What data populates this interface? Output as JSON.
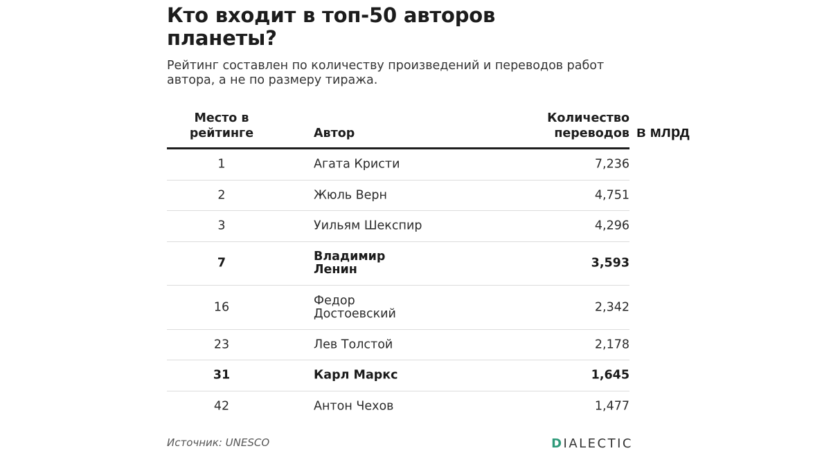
{
  "title": "Кто входит в топ-50 авторов планеты?",
  "subtitle": "Рейтинг составлен по количеству произведений и переводов работ автора, а не по размеру тиража.",
  "units_note": "в млрд",
  "source": "Источник: UNESCO",
  "logo": {
    "first_letter": "D",
    "rest": "IALECTIC"
  },
  "colors": {
    "logo_accent": "#2f9a7a",
    "text": "#1d1d1d",
    "divider": "#dcdcdc"
  },
  "chart_data": {
    "type": "table",
    "columns": [
      "Место в рейтинге",
      "Автор",
      "Количество переводов"
    ],
    "rows": [
      {
        "rank": "1",
        "author": "Агата Кристи",
        "count": "7,236",
        "highlight": false
      },
      {
        "rank": "2",
        "author": "Жюль Верн",
        "count": "4,751",
        "highlight": false
      },
      {
        "rank": "3",
        "author": "Уильям Шекспир",
        "count": "4,296",
        "highlight": false
      },
      {
        "rank": "7",
        "author": "Владимир Ленин",
        "count": "3,593",
        "highlight": true
      },
      {
        "rank": "16",
        "author": "Федор Достоевский",
        "count": "2,342",
        "highlight": false
      },
      {
        "rank": "23",
        "author": "Лев Толстой",
        "count": "2,178",
        "highlight": false
      },
      {
        "rank": "31",
        "author": "Карл Маркс",
        "count": "1,645",
        "highlight": true
      },
      {
        "rank": "42",
        "author": "Антон Чехов",
        "count": "1,477",
        "highlight": false
      }
    ]
  }
}
